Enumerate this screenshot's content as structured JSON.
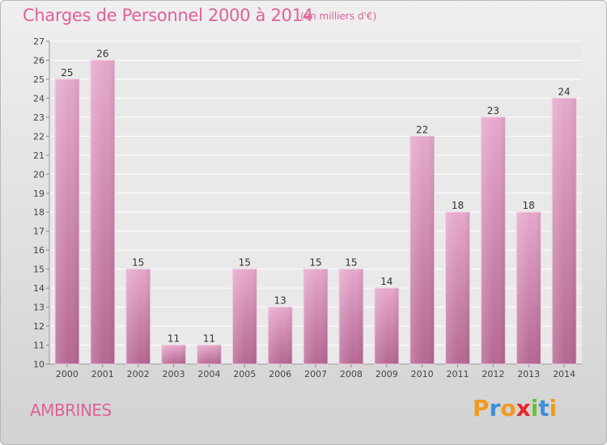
{
  "header": {
    "title": "Charges de Personnel 2000 à 2014",
    "subtitle": "(en milliers d'€)"
  },
  "commune": "AMBRINES",
  "logo": {
    "letters": [
      "P",
      "r",
      "o",
      "x",
      "i",
      "t",
      "i"
    ],
    "colors": [
      "#f29a1f",
      "#3d8fd6",
      "#f29a1f",
      "#e8262a",
      "#6bbf3a",
      "#3d8fd6",
      "#f29a1f"
    ]
  },
  "chart_data": {
    "type": "bar",
    "title": "Charges de Personnel 2000 à 2014",
    "subtitle": "(en milliers d'€)",
    "categories": [
      "2000",
      "2001",
      "2002",
      "2003",
      "2004",
      "2005",
      "2006",
      "2007",
      "2008",
      "2009",
      "2010",
      "2011",
      "2012",
      "2013",
      "2014"
    ],
    "values": [
      25,
      26,
      15,
      11,
      11,
      15,
      13,
      15,
      15,
      14,
      22,
      18,
      23,
      18,
      24
    ],
    "ylim": [
      10,
      27
    ],
    "yticks": [
      10,
      11,
      12,
      13,
      14,
      15,
      16,
      17,
      18,
      19,
      20,
      21,
      22,
      23,
      24,
      25,
      26,
      27
    ],
    "grid": true,
    "bar_color": "#d98fba"
  }
}
